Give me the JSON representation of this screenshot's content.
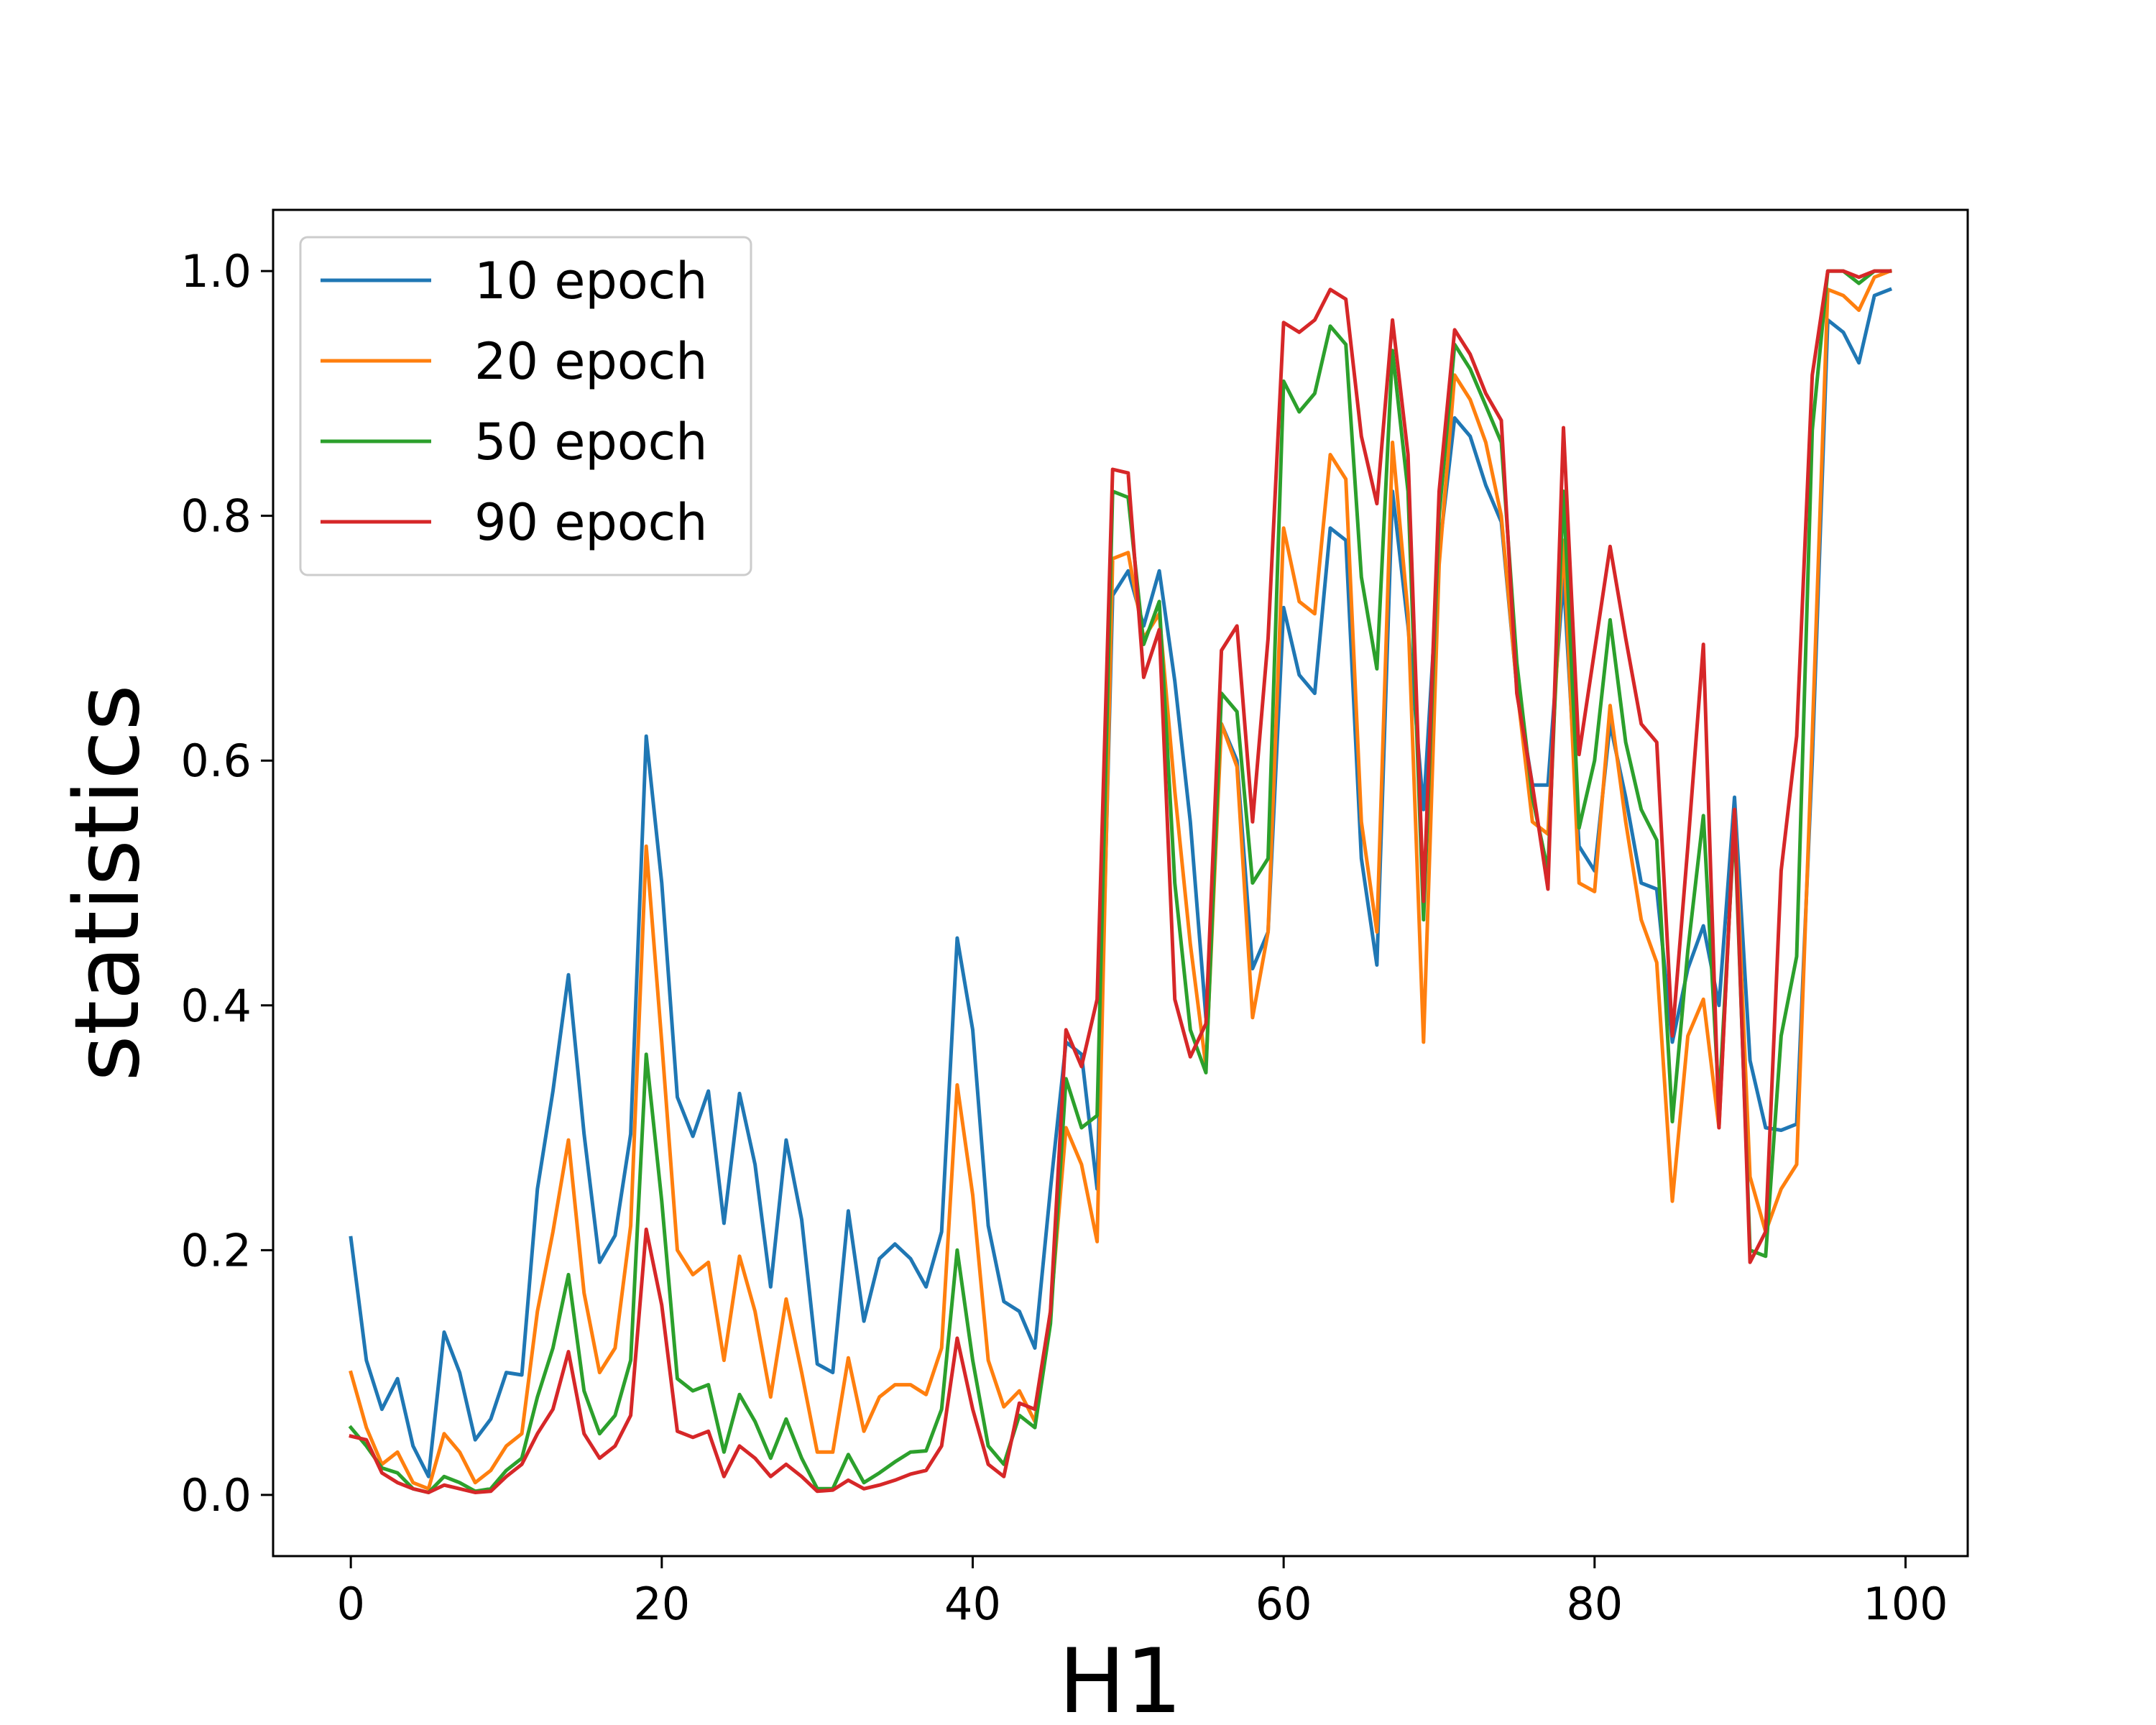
{
  "chart_data": {
    "type": "line",
    "xlabel": "H1",
    "ylabel": "statistics",
    "xlim": [
      -5,
      104
    ],
    "ylim": [
      -0.05,
      1.05
    ],
    "x_ticks": [
      0,
      20,
      40,
      60,
      80,
      100
    ],
    "x_tick_labels": [
      "0",
      "20",
      "40",
      "60",
      "80",
      "100"
    ],
    "y_ticks": [
      0.0,
      0.2,
      0.4,
      0.6,
      0.8,
      1.0
    ],
    "y_tick_labels": [
      "0.0",
      "0.2",
      "0.4",
      "0.6",
      "0.8",
      "1.0"
    ],
    "grid": false,
    "legend_position": "top-left",
    "x": [
      0,
      1,
      2,
      3,
      4,
      5,
      6,
      7,
      8,
      9,
      10,
      11,
      12,
      13,
      14,
      15,
      16,
      17,
      18,
      19,
      20,
      21,
      22,
      23,
      24,
      25,
      26,
      27,
      28,
      29,
      30,
      31,
      32,
      33,
      34,
      35,
      36,
      37,
      38,
      39,
      40,
      41,
      42,
      43,
      44,
      45,
      46,
      47,
      48,
      49,
      50,
      51,
      52,
      53,
      54,
      55,
      56,
      57,
      58,
      59,
      60,
      61,
      62,
      63,
      64,
      65,
      66,
      67,
      68,
      69,
      70,
      71,
      72,
      73,
      74,
      75,
      76,
      77,
      78,
      79,
      80,
      81,
      82,
      83,
      84,
      85,
      86,
      87,
      88,
      89,
      90,
      91,
      92,
      93,
      94,
      95,
      96,
      97,
      98,
      99
    ],
    "series": [
      {
        "name": "10 epoch",
        "color": "#1f77b4",
        "values": [
          0.21,
          0.11,
          0.07,
          0.095,
          0.04,
          0.015,
          0.133,
          0.1,
          0.045,
          0.062,
          0.1,
          0.098,
          0.25,
          0.33,
          0.425,
          0.295,
          0.19,
          0.212,
          0.295,
          0.62,
          0.5,
          0.325,
          0.293,
          0.33,
          0.222,
          0.328,
          0.27,
          0.17,
          0.29,
          0.225,
          0.107,
          0.1,
          0.232,
          0.142,
          0.193,
          0.205,
          0.193,
          0.17,
          0.215,
          0.455,
          0.38,
          0.22,
          0.158,
          0.15,
          0.12,
          0.25,
          0.37,
          0.36,
          0.25,
          0.735,
          0.755,
          0.71,
          0.755,
          0.665,
          0.55,
          0.39,
          0.63,
          0.6,
          0.43,
          0.46,
          0.725,
          0.67,
          0.655,
          0.79,
          0.78,
          0.52,
          0.433,
          0.82,
          0.71,
          0.56,
          0.77,
          0.88,
          0.865,
          0.825,
          0.795,
          0.66,
          0.58,
          0.58,
          0.75,
          0.53,
          0.51,
          0.63,
          0.57,
          0.5,
          0.495,
          0.37,
          0.43,
          0.465,
          0.4,
          0.57,
          0.355,
          0.3,
          0.298,
          0.303,
          0.6,
          0.96,
          0.95,
          0.925,
          0.98,
          0.985
        ]
      },
      {
        "name": "20 epoch",
        "color": "#ff7f0e",
        "values": [
          0.1,
          0.055,
          0.025,
          0.035,
          0.01,
          0.005,
          0.05,
          0.035,
          0.01,
          0.02,
          0.04,
          0.05,
          0.15,
          0.215,
          0.29,
          0.165,
          0.1,
          0.12,
          0.22,
          0.53,
          0.37,
          0.2,
          0.18,
          0.19,
          0.11,
          0.195,
          0.15,
          0.08,
          0.16,
          0.1,
          0.035,
          0.035,
          0.112,
          0.052,
          0.08,
          0.09,
          0.09,
          0.082,
          0.12,
          0.335,
          0.245,
          0.11,
          0.072,
          0.085,
          0.06,
          0.15,
          0.3,
          0.27,
          0.207,
          0.765,
          0.77,
          0.7,
          0.72,
          0.575,
          0.45,
          0.35,
          0.63,
          0.595,
          0.39,
          0.46,
          0.79,
          0.73,
          0.72,
          0.85,
          0.83,
          0.55,
          0.46,
          0.86,
          0.72,
          0.37,
          0.76,
          0.915,
          0.895,
          0.86,
          0.8,
          0.66,
          0.55,
          0.54,
          0.78,
          0.5,
          0.493,
          0.645,
          0.55,
          0.47,
          0.435,
          0.24,
          0.375,
          0.405,
          0.3,
          0.56,
          0.26,
          0.215,
          0.25,
          0.27,
          0.62,
          0.985,
          0.98,
          0.968,
          0.995,
          1.0
        ]
      },
      {
        "name": "50 epoch",
        "color": "#2ca02c",
        "values": [
          0.055,
          0.04,
          0.022,
          0.018,
          0.005,
          0.002,
          0.015,
          0.01,
          0.003,
          0.005,
          0.02,
          0.03,
          0.08,
          0.12,
          0.18,
          0.085,
          0.05,
          0.065,
          0.11,
          0.36,
          0.24,
          0.095,
          0.085,
          0.09,
          0.035,
          0.082,
          0.06,
          0.03,
          0.062,
          0.03,
          0.005,
          0.005,
          0.033,
          0.01,
          0.018,
          0.027,
          0.035,
          0.036,
          0.07,
          0.2,
          0.11,
          0.04,
          0.025,
          0.065,
          0.055,
          0.14,
          0.34,
          0.3,
          0.31,
          0.82,
          0.815,
          0.695,
          0.73,
          0.5,
          0.38,
          0.345,
          0.655,
          0.64,
          0.5,
          0.52,
          0.91,
          0.885,
          0.9,
          0.955,
          0.94,
          0.75,
          0.675,
          0.935,
          0.82,
          0.47,
          0.8,
          0.94,
          0.92,
          0.89,
          0.86,
          0.68,
          0.57,
          0.51,
          0.82,
          0.545,
          0.6,
          0.715,
          0.615,
          0.56,
          0.535,
          0.305,
          0.445,
          0.555,
          0.32,
          0.55,
          0.2,
          0.195,
          0.375,
          0.44,
          0.87,
          1.0,
          1.0,
          0.99,
          1.0,
          1.0
        ]
      },
      {
        "name": "90 epoch",
        "color": "#d62728",
        "values": [
          0.048,
          0.045,
          0.018,
          0.01,
          0.005,
          0.002,
          0.008,
          0.005,
          0.002,
          0.003,
          0.015,
          0.025,
          0.05,
          0.07,
          0.117,
          0.05,
          0.03,
          0.04,
          0.065,
          0.217,
          0.155,
          0.052,
          0.047,
          0.052,
          0.015,
          0.04,
          0.03,
          0.015,
          0.025,
          0.015,
          0.003,
          0.004,
          0.012,
          0.005,
          0.008,
          0.012,
          0.017,
          0.02,
          0.04,
          0.128,
          0.07,
          0.025,
          0.015,
          0.075,
          0.07,
          0.15,
          0.38,
          0.35,
          0.405,
          0.838,
          0.835,
          0.668,
          0.707,
          0.405,
          0.358,
          0.385,
          0.69,
          0.71,
          0.55,
          0.7,
          0.958,
          0.95,
          0.96,
          0.985,
          0.977,
          0.865,
          0.81,
          0.96,
          0.85,
          0.485,
          0.82,
          0.952,
          0.932,
          0.9,
          0.878,
          0.655,
          0.58,
          0.495,
          0.872,
          0.605,
          0.69,
          0.775,
          0.7,
          0.63,
          0.615,
          0.375,
          0.53,
          0.695,
          0.3,
          0.56,
          0.19,
          0.215,
          0.51,
          0.62,
          0.915,
          1.0,
          1.0,
          0.995,
          1.0,
          1.0
        ]
      }
    ]
  }
}
